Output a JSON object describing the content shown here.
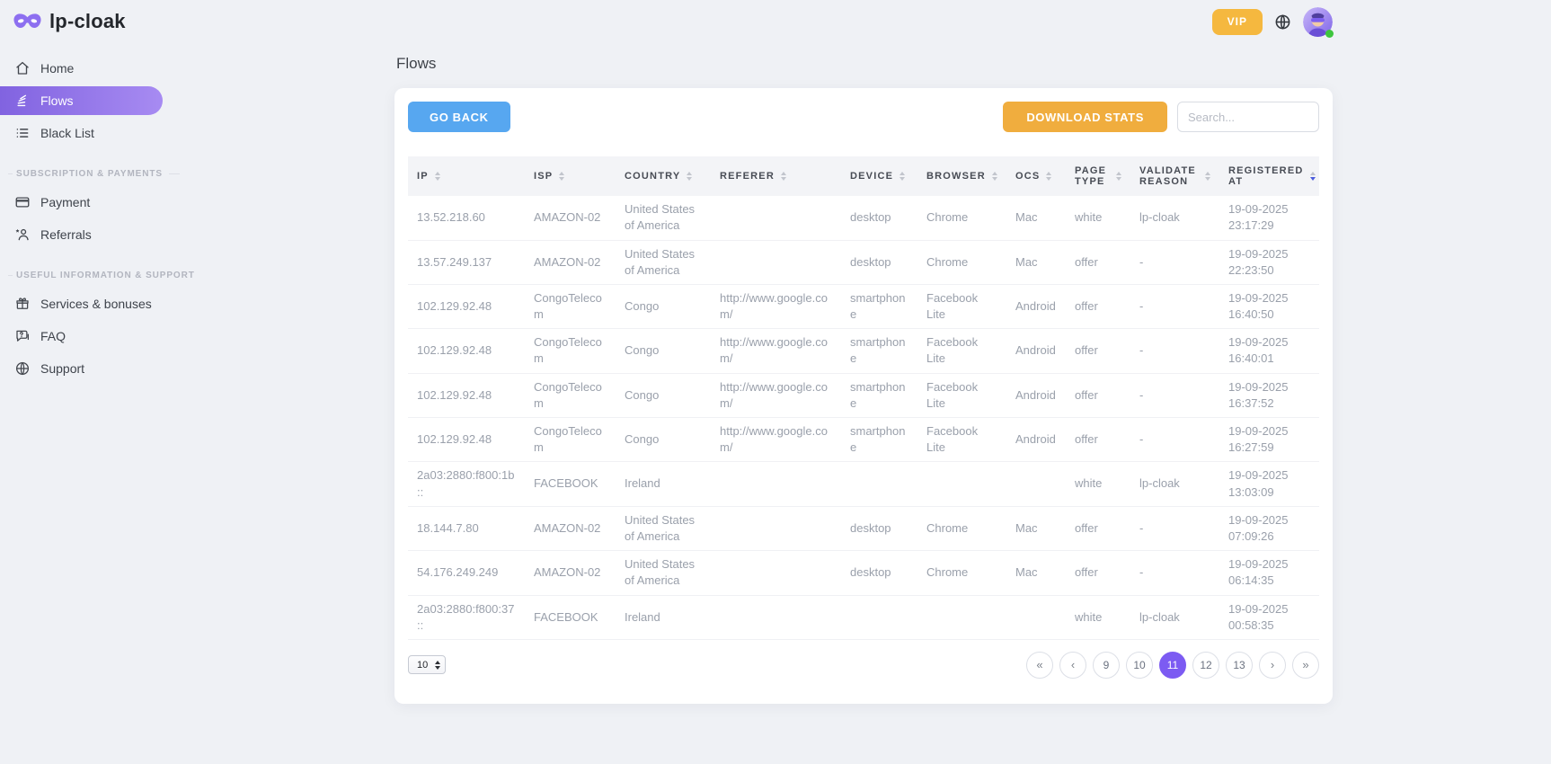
{
  "brand": {
    "name": "lp-cloak"
  },
  "topbar": {
    "vip_label": "VIP"
  },
  "sidebar": {
    "main_items": [
      {
        "label": "Home"
      },
      {
        "label": "Flows"
      },
      {
        "label": "Black List"
      }
    ],
    "sections": [
      {
        "label": "SUBSCRIPTION & PAYMENTS",
        "items": [
          {
            "label": "Payment"
          },
          {
            "label": "Referrals"
          }
        ]
      },
      {
        "label": "USEFUL INFORMATION & SUPPORT",
        "items": [
          {
            "label": "Services & bonuses"
          },
          {
            "label": "FAQ"
          },
          {
            "label": "Support"
          }
        ]
      }
    ]
  },
  "page": {
    "title": "Flows"
  },
  "toolbar": {
    "go_back_label": "GO BACK",
    "download_stats_label": "DOWNLOAD STATS",
    "search_placeholder": "Search..."
  },
  "table": {
    "columns": [
      {
        "label": "IP"
      },
      {
        "label": "ISP"
      },
      {
        "label": "COUNTRY"
      },
      {
        "label": "REFERER"
      },
      {
        "label": "DEVICE"
      },
      {
        "label": "BROWSER"
      },
      {
        "label": "OCS"
      },
      {
        "label": "PAGE TYPE"
      },
      {
        "label": "VALIDATE REASON"
      },
      {
        "label": "REGISTERED AT",
        "sorted": "desc"
      }
    ],
    "rows": [
      {
        "ip": "13.52.218.60",
        "isp": "AMAZON-02",
        "country": "United States of America",
        "referer": "",
        "device": "desktop",
        "browser": "Chrome",
        "ocs": "Mac",
        "page_type": "white",
        "validate_reason": "lp-cloak",
        "registered_at": "19-09-2025 23:17:29"
      },
      {
        "ip": "13.57.249.137",
        "isp": "AMAZON-02",
        "country": "United States of America",
        "referer": "",
        "device": "desktop",
        "browser": "Chrome",
        "ocs": "Mac",
        "page_type": "offer",
        "validate_reason": "-",
        "registered_at": "19-09-2025 22:23:50"
      },
      {
        "ip": "102.129.92.48",
        "isp": "CongoTelecom",
        "country": "Congo",
        "referer": "http://www.google.com/",
        "device": "smartphone",
        "browser": "Facebook Lite",
        "ocs": "Android",
        "page_type": "offer",
        "validate_reason": "-",
        "registered_at": "19-09-2025 16:40:50"
      },
      {
        "ip": "102.129.92.48",
        "isp": "CongoTelecom",
        "country": "Congo",
        "referer": "http://www.google.com/",
        "device": "smartphone",
        "browser": "Facebook Lite",
        "ocs": "Android",
        "page_type": "offer",
        "validate_reason": "-",
        "registered_at": "19-09-2025 16:40:01"
      },
      {
        "ip": "102.129.92.48",
        "isp": "CongoTelecom",
        "country": "Congo",
        "referer": "http://www.google.com/",
        "device": "smartphone",
        "browser": "Facebook Lite",
        "ocs": "Android",
        "page_type": "offer",
        "validate_reason": "-",
        "registered_at": "19-09-2025 16:37:52"
      },
      {
        "ip": "102.129.92.48",
        "isp": "CongoTelecom",
        "country": "Congo",
        "referer": "http://www.google.com/",
        "device": "smartphone",
        "browser": "Facebook Lite",
        "ocs": "Android",
        "page_type": "offer",
        "validate_reason": "-",
        "registered_at": "19-09-2025 16:27:59"
      },
      {
        "ip": "2a03:2880:f800:1b::",
        "isp": "FACEBOOK",
        "country": "Ireland",
        "referer": "",
        "device": "",
        "browser": "",
        "ocs": "",
        "page_type": "white",
        "validate_reason": "lp-cloak",
        "registered_at": "19-09-2025 13:03:09"
      },
      {
        "ip": "18.144.7.80",
        "isp": "AMAZON-02",
        "country": "United States of America",
        "referer": "",
        "device": "desktop",
        "browser": "Chrome",
        "ocs": "Mac",
        "page_type": "offer",
        "validate_reason": "-",
        "registered_at": "19-09-2025 07:09:26"
      },
      {
        "ip": "54.176.249.249",
        "isp": "AMAZON-02",
        "country": "United States of America",
        "referer": "",
        "device": "desktop",
        "browser": "Chrome",
        "ocs": "Mac",
        "page_type": "offer",
        "validate_reason": "-",
        "registered_at": "19-09-2025 06:14:35"
      },
      {
        "ip": "2a03:2880:f800:37::",
        "isp": "FACEBOOK",
        "country": "Ireland",
        "referer": "",
        "device": "",
        "browser": "",
        "ocs": "",
        "page_type": "white",
        "validate_reason": "lp-cloak",
        "registered_at": "19-09-2025 00:58:35"
      }
    ]
  },
  "pagination": {
    "page_size": "10",
    "first_label": "«",
    "prev_label": "‹",
    "next_label": "›",
    "last_label": "»",
    "pages": [
      "9",
      "10",
      "11",
      "12",
      "13"
    ],
    "active_page": "11"
  },
  "colors": {
    "accent_purple": "#7c5bf2",
    "button_blue": "#57a7f0",
    "button_orange": "#f0ad3e",
    "vip_orange": "#f5b83f",
    "active_sort_arrow": "#4a5bdc",
    "status_online": "#3ec53e"
  }
}
